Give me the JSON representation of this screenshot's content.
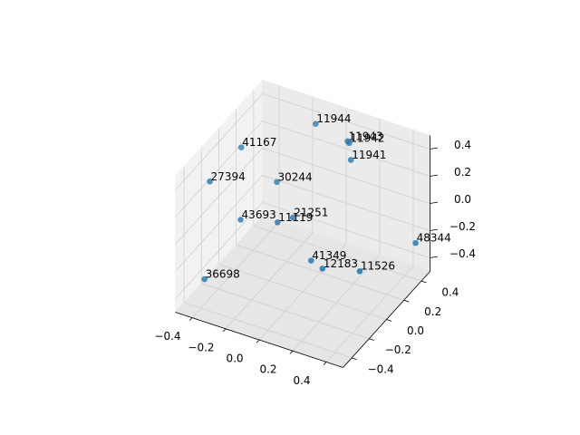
{
  "chart_data": {
    "type": "scatter3d",
    "color": "#1f77b4",
    "xlim": [
      -0.5,
      0.5
    ],
    "ylim": [
      -0.5,
      0.5
    ],
    "zlim": [
      -0.5,
      0.5
    ],
    "xticks": [
      {
        "value": -0.4,
        "label": "−0.4"
      },
      {
        "value": -0.2,
        "label": "−0.2"
      },
      {
        "value": 0.0,
        "label": "0.0"
      },
      0.2,
      0.4
    ],
    "yticks": [
      {
        "value": -0.4,
        "label": "−0.4"
      },
      {
        "value": -0.2,
        "label": "−0.2"
      },
      {
        "value": 0.0,
        "label": "0.0"
      },
      0.2,
      0.4
    ],
    "zticks": [
      {
        "value": -0.4,
        "label": "−0.4"
      },
      {
        "value": -0.2,
        "label": "−0.2"
      },
      {
        "value": 0.0,
        "label": "0.0"
      },
      0.2,
      0.4
    ],
    "grid": true,
    "points": [
      {
        "label": "11944",
        "x": -0.13,
        "y": 0.4,
        "z": 0.4
      },
      {
        "label": "11943",
        "x": 0.06,
        "y": 0.4,
        "z": 0.35
      },
      {
        "label": "11942",
        "x": 0.07,
        "y": 0.4,
        "z": 0.34
      },
      {
        "label": "11941",
        "x": 0.08,
        "y": 0.4,
        "z": 0.22
      },
      {
        "label": "41167",
        "x": -0.47,
        "y": 0.2,
        "z": 0.23
      },
      {
        "label": "27394",
        "x": -0.45,
        "y": -0.2,
        "z": 0.27
      },
      {
        "label": "30244",
        "x": -0.31,
        "y": 0.3,
        "z": -0.03
      },
      {
        "label": "43693",
        "x": -0.37,
        "y": 0.0,
        "z": -0.12
      },
      {
        "label": "11119",
        "x": -0.15,
        "y": 0.0,
        "z": -0.05
      },
      {
        "label": "21251",
        "x": -0.11,
        "y": 0.1,
        "z": -0.07
      },
      {
        "label": "48344",
        "x": 0.44,
        "y": 0.45,
        "z": -0.28
      },
      {
        "label": "41349",
        "x": 0.05,
        "y": 0.0,
        "z": -0.25
      },
      {
        "label": "12183",
        "x": 0.17,
        "y": -0.1,
        "z": -0.19
      },
      {
        "label": "11526",
        "x": 0.34,
        "y": 0.0,
        "z": -0.21
      },
      {
        "label": "36698",
        "x": -0.43,
        "y": -0.3,
        "z": -0.37
      }
    ]
  }
}
